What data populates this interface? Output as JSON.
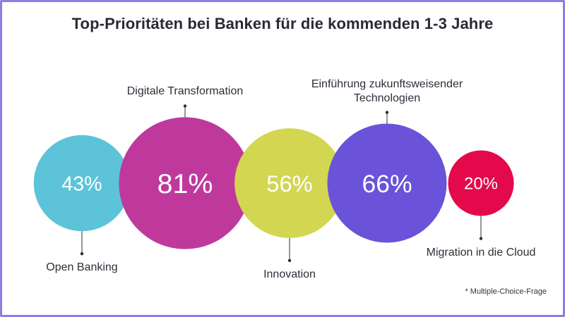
{
  "chart_data": {
    "type": "bubble",
    "title": "Top-Prioritäten bei Banken für die kommenden 1-3 Jahre",
    "footnote": "* Multiple-Choice-Frage",
    "unit": "%",
    "categories": [
      "Open Banking",
      "Digitale Transformation",
      "Innovation",
      "Einführung zukunftsweisender Technologien",
      "Migration in die Cloud"
    ],
    "values": [
      43,
      81,
      56,
      66,
      20
    ],
    "value_labels": [
      "43%",
      "81%",
      "56%",
      "66%",
      "20%"
    ],
    "label_lines": [
      [
        "Open Banking"
      ],
      [
        "Digitale Transformation"
      ],
      [
        "Innovation"
      ],
      [
        "Einführung zukunftsweisender",
        "Technologien"
      ],
      [
        "Migration in die Cloud"
      ]
    ],
    "label_position": [
      "below",
      "above",
      "below",
      "above",
      "below"
    ],
    "colors": [
      "#5cc3d8",
      "#bf399d",
      "#d3d651",
      "#6a53d8",
      "#e4094a"
    ]
  }
}
